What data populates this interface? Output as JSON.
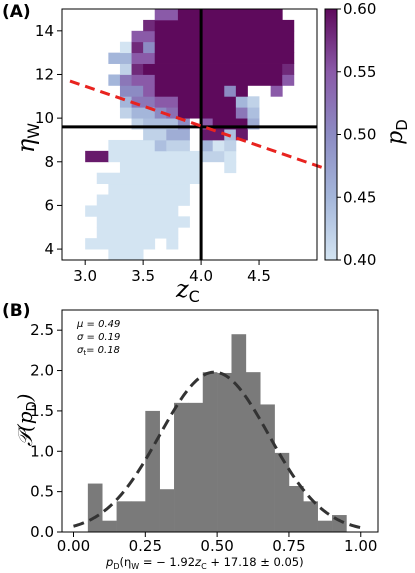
{
  "chart_data": [
    {
      "panel_label": "(A)",
      "type": "heatmap",
      "xlabel": "z",
      "xlabel_sub": "C",
      "ylabel": "η",
      "ylabel_sub": "W",
      "xlim": [
        2.8,
        5.0
      ],
      "ylim": [
        3.5,
        15.0
      ],
      "xticks": [
        "3.0",
        "3.5",
        "4.0",
        "4.5"
      ],
      "yticks": [
        "4",
        "6",
        "8",
        "10",
        "12",
        "14"
      ],
      "colorbar": {
        "label": "p",
        "label_sub": "D",
        "range": [
          0.4,
          0.6
        ],
        "ticks": [
          "0.40",
          "0.45",
          "0.50",
          "0.55",
          "0.60"
        ],
        "colors": [
          "#d3e4f2",
          "#a4b6da",
          "#8c8bc3",
          "#8a5aa8",
          "#5e0a5c"
        ]
      },
      "cell_size": {
        "x": 0.1,
        "y": 0.5
      },
      "cells_note": "rows listed by eta bin start; each run [x_start, x_end, pD]",
      "rows": [
        {
          "eta": 3.5,
          "runs": [
            [
              3.2,
              3.5,
              0.4
            ]
          ]
        },
        {
          "eta": 4.0,
          "runs": [
            [
              3.0,
              3.6,
              0.4
            ],
            [
              3.7,
              3.8,
              0.4
            ]
          ]
        },
        {
          "eta": 4.5,
          "runs": [
            [
              3.1,
              3.8,
              0.4
            ]
          ]
        },
        {
          "eta": 5.0,
          "runs": [
            [
              3.1,
              3.9,
              0.4
            ]
          ]
        },
        {
          "eta": 5.5,
          "runs": [
            [
              3.0,
              3.8,
              0.4
            ]
          ]
        },
        {
          "eta": 6.0,
          "runs": [
            [
              3.1,
              3.9,
              0.4
            ]
          ]
        },
        {
          "eta": 6.5,
          "runs": [
            [
              3.2,
              3.9,
              0.4
            ]
          ]
        },
        {
          "eta": 7.0,
          "runs": [
            [
              3.1,
              4.0,
              0.4
            ]
          ]
        },
        {
          "eta": 7.5,
          "runs": [
            [
              3.3,
              4.0,
              0.4
            ],
            [
              4.2,
              4.3,
              0.4
            ]
          ]
        },
        {
          "eta": 8.0,
          "runs": [
            [
              3.0,
              3.2,
              0.59
            ],
            [
              3.2,
              4.0,
              0.4
            ],
            [
              4.0,
              4.2,
              0.42
            ],
            [
              4.2,
              4.3,
              0.4
            ]
          ]
        },
        {
          "eta": 8.5,
          "runs": [
            [
              3.2,
              3.6,
              0.4
            ],
            [
              3.6,
              3.7,
              0.44
            ],
            [
              3.7,
              3.9,
              0.42
            ],
            [
              4.0,
              4.1,
              0.45
            ],
            [
              4.1,
              4.2,
              0.4
            ],
            [
              4.2,
              4.3,
              0.42
            ]
          ]
        },
        {
          "eta": 9.0,
          "runs": [
            [
              3.5,
              3.7,
              0.42
            ],
            [
              3.7,
              3.9,
              0.46
            ],
            [
              4.0,
              4.2,
              0.59
            ],
            [
              4.2,
              4.3,
              0.44
            ],
            [
              4.3,
              4.4,
              0.59
            ]
          ]
        },
        {
          "eta": 9.5,
          "runs": [
            [
              3.4,
              3.5,
              0.42
            ],
            [
              3.5,
              3.8,
              0.44
            ],
            [
              3.8,
              3.9,
              0.5
            ],
            [
              4.0,
              4.1,
              0.55
            ],
            [
              4.1,
              4.4,
              0.6
            ],
            [
              4.4,
              4.5,
              0.46
            ]
          ]
        },
        {
          "eta": 10.0,
          "runs": [
            [
              3.3,
              3.4,
              0.42
            ],
            [
              3.4,
              3.6,
              0.45
            ],
            [
              3.6,
              3.7,
              0.5
            ],
            [
              3.7,
              3.8,
              0.53
            ],
            [
              3.8,
              4.3,
              0.6
            ],
            [
              4.3,
              4.4,
              0.52
            ],
            [
              4.4,
              4.5,
              0.44
            ]
          ]
        },
        {
          "eta": 10.5,
          "runs": [
            [
              3.3,
              3.4,
              0.45
            ],
            [
              3.4,
              3.6,
              0.52
            ],
            [
              3.6,
              3.8,
              0.55
            ],
            [
              3.8,
              4.3,
              0.6
            ],
            [
              4.3,
              4.4,
              0.45
            ],
            [
              4.4,
              4.5,
              0.42
            ]
          ]
        },
        {
          "eta": 11.0,
          "runs": [
            [
              3.3,
              3.5,
              0.5
            ],
            [
              3.5,
              3.6,
              0.55
            ],
            [
              3.6,
              4.2,
              0.6
            ],
            [
              4.2,
              4.3,
              0.5
            ],
            [
              4.3,
              4.4,
              0.6
            ],
            [
              4.6,
              4.7,
              0.55
            ]
          ]
        },
        {
          "eta": 11.5,
          "runs": [
            [
              3.2,
              3.3,
              0.45
            ],
            [
              3.3,
              3.4,
              0.52
            ],
            [
              3.4,
              3.6,
              0.55
            ],
            [
              3.6,
              4.7,
              0.6
            ],
            [
              4.7,
              4.8,
              0.55
            ]
          ]
        },
        {
          "eta": 12.0,
          "runs": [
            [
              3.3,
              3.4,
              0.42
            ],
            [
              3.4,
              3.5,
              0.58
            ],
            [
              3.5,
              4.7,
              0.6
            ],
            [
              4.7,
              4.8,
              0.58
            ]
          ]
        },
        {
          "eta": 12.5,
          "runs": [
            [
              3.2,
              3.4,
              0.45
            ],
            [
              3.4,
              3.6,
              0.55
            ],
            [
              3.6,
              4.8,
              0.6
            ]
          ]
        },
        {
          "eta": 13.0,
          "runs": [
            [
              3.3,
              3.4,
              0.4
            ],
            [
              3.4,
              3.5,
              0.58
            ],
            [
              3.5,
              3.6,
              0.5
            ],
            [
              3.6,
              4.8,
              0.6
            ]
          ]
        },
        {
          "eta": 13.5,
          "runs": [
            [
              3.4,
              3.6,
              0.55
            ],
            [
              3.6,
              4.8,
              0.6
            ]
          ]
        },
        {
          "eta": 14.0,
          "runs": [
            [
              3.5,
              3.6,
              0.58
            ],
            [
              3.6,
              4.8,
              0.6
            ]
          ]
        },
        {
          "eta": 14.5,
          "runs": [
            [
              3.6,
              3.8,
              0.55
            ],
            [
              3.8,
              4.7,
              0.6
            ]
          ]
        }
      ],
      "vline_x": 4.0,
      "hline_y": 9.6,
      "fit_line": {
        "x": [
          2.8,
          5.0
        ],
        "y": [
          11.7,
          7.6
        ],
        "style": "dashed",
        "color": "#e8231f"
      }
    },
    {
      "panel_label": "(B)",
      "type": "histogram",
      "xlabel": "p",
      "ylabel": "𝒫(p",
      "xlim": [
        -0.04,
        1.06
      ],
      "ylim": [
        0,
        2.75
      ],
      "xticks": [
        "0.00",
        "0.25",
        "0.50",
        "0.75",
        "1.00"
      ],
      "yticks": [
        "0.0",
        "0.5",
        "1.0",
        "1.5",
        "2.0",
        "2.5"
      ],
      "bin_edges": [
        0.05,
        0.1,
        0.15,
        0.2,
        0.25,
        0.3,
        0.35,
        0.4,
        0.45,
        0.5,
        0.55,
        0.6,
        0.65,
        0.7,
        0.75,
        0.8,
        0.85,
        0.9,
        0.95
      ],
      "values": [
        0.6,
        0.14,
        0.38,
        0.38,
        1.5,
        0.53,
        1.6,
        1.6,
        1.98,
        1.97,
        2.45,
        1.98,
        1.58,
        0.98,
        0.57,
        0.38,
        0.14,
        0.21
      ],
      "bar_color": "#7a7a7a",
      "fit_curve": {
        "mu": 0.49,
        "sigma": 0.19,
        "peak": 1.98,
        "style": "dashed",
        "color": "#333333"
      },
      "annotations": [
        "μ = 0.49",
        "σ = 0.19",
        "σ",
        "= 0.18"
      ],
      "xlabel_full_parts": {
        "pD": "p",
        "rest_open": "(η",
        "eq": " = − 1.92",
        "z": "z",
        "tail": " + 17.18 ± 0.05)"
      }
    }
  ]
}
